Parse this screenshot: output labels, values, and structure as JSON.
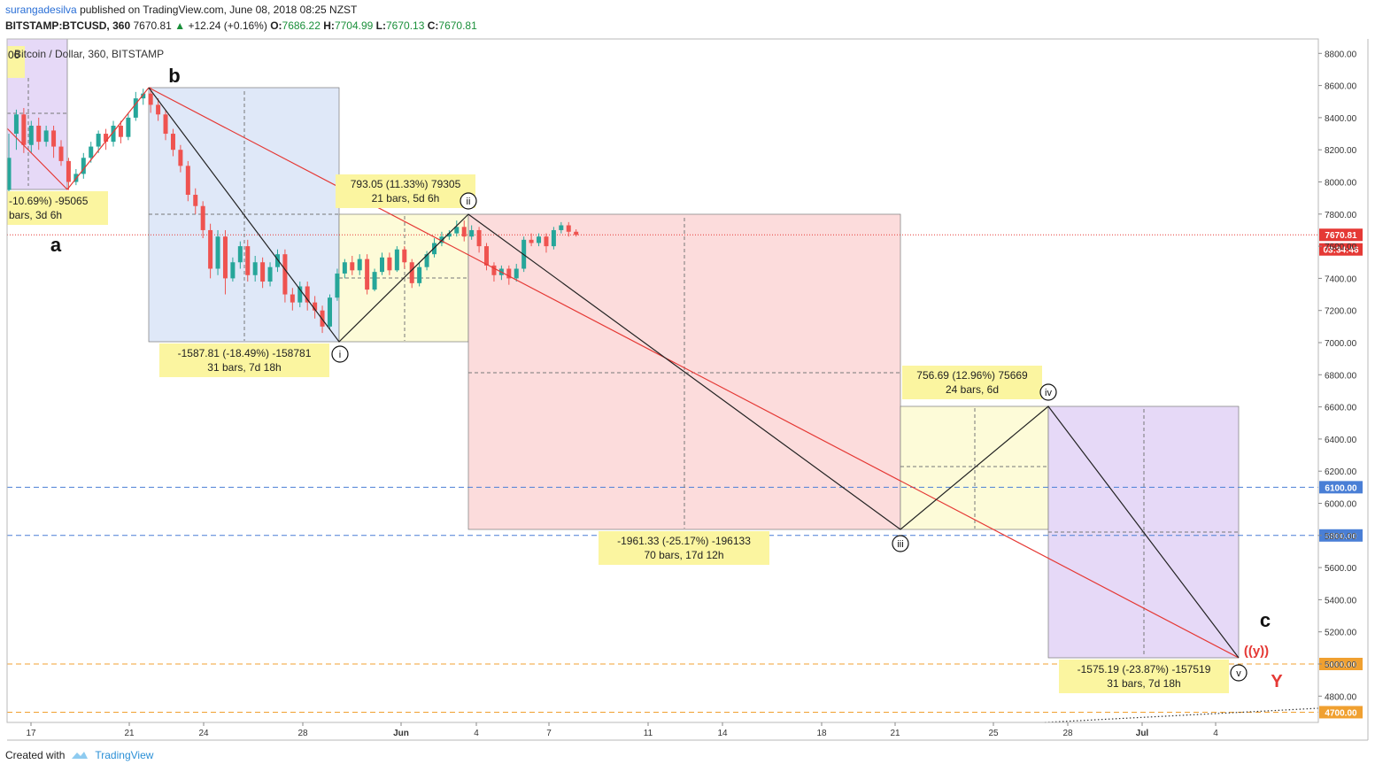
{
  "header": {
    "user": "surangadesilva",
    "published": "published on TradingView.com, June 08, 2018 08:25 NZST",
    "symbol": "BITSTAMP:BTCUSD, 360",
    "last": "7670.81",
    "change": "+12.24 (+0.16%)",
    "o_label": "O:",
    "o": "7686.22",
    "h_label": "H:",
    "h": "7704.99",
    "l_label": "L:",
    "l": "7670.13",
    "c_label": "C:",
    "c": "7670.81"
  },
  "footer": {
    "created": "Created with",
    "brand": "TradingView"
  },
  "colors": {
    "up": "#26a69a",
    "down": "#ef5350",
    "red_line": "#e53935",
    "blue_dash": "#4a7fd6",
    "orange_dash": "#f0a030"
  },
  "chart_data": {
    "type": "candlestick",
    "title": "Bitcoin / Dollar, 360, BITSTAMP",
    "ylim": [
      4620,
      8980
    ],
    "y_ticks": [
      "8800.00",
      "8600.00",
      "8400.00",
      "8200.00",
      "8000.00",
      "7800.00",
      "7600.00",
      "7400.00",
      "7200.00",
      "7000.00",
      "6800.00",
      "6600.00",
      "6400.00",
      "6200.00",
      "6000.00",
      "5800.00",
      "5600.00",
      "5400.00",
      "5200.00",
      "5000.00",
      "4800.00"
    ],
    "x_ticks": [
      "17",
      "21",
      "24",
      "28",
      "Jun",
      "4",
      "7",
      "11",
      "14",
      "18",
      "21",
      "25",
      "28",
      "Jul",
      "4"
    ],
    "price_labels": [
      {
        "label": "7670.81",
        "value": 7670.81,
        "color": "#e53935"
      },
      {
        "label": "03:34:46",
        "value": 7580,
        "color": "#e53935"
      },
      {
        "label": "6100.00",
        "value": 6100,
        "color": "#4a7fd6"
      },
      {
        "label": "5800.00",
        "value": 5800,
        "color": "#4a7fd6"
      },
      {
        "label": "5000.00",
        "value": 5000,
        "color": "#f0a030"
      },
      {
        "label": "4700.00",
        "value": 4700,
        "color": "#f0a030"
      }
    ],
    "candles": [
      [
        0,
        7950,
        8150,
        7900,
        8300
      ],
      [
        1,
        8300,
        8420,
        8200,
        8450
      ],
      [
        2,
        8420,
        8230,
        8180,
        8460
      ],
      [
        3,
        8230,
        8350,
        8180,
        8380
      ],
      [
        4,
        8350,
        8250,
        8200,
        8400
      ],
      [
        5,
        8250,
        8320,
        8220,
        8350
      ],
      [
        6,
        8320,
        8220,
        8150,
        8350
      ],
      [
        7,
        8220,
        8130,
        8100,
        8260
      ],
      [
        8,
        8130,
        8000,
        7950,
        8150
      ],
      [
        9,
        8000,
        8050,
        7980,
        8080
      ],
      [
        10,
        8050,
        8150,
        8020,
        8180
      ],
      [
        11,
        8150,
        8220,
        8120,
        8250
      ],
      [
        12,
        8220,
        8300,
        8180,
        8320
      ],
      [
        13,
        8300,
        8250,
        8200,
        8330
      ],
      [
        14,
        8250,
        8350,
        8220,
        8380
      ],
      [
        15,
        8350,
        8280,
        8240,
        8380
      ],
      [
        16,
        8280,
        8400,
        8260,
        8430
      ],
      [
        17,
        8400,
        8520,
        8380,
        8560
      ],
      [
        18,
        8520,
        8550,
        8480,
        8580
      ],
      [
        19,
        8550,
        8480,
        8430,
        8590
      ],
      [
        20,
        8480,
        8420,
        8380,
        8520
      ],
      [
        21,
        8420,
        8300,
        8260,
        8450
      ],
      [
        22,
        8300,
        8200,
        8160,
        8330
      ],
      [
        23,
        8200,
        8100,
        8060,
        8230
      ],
      [
        24,
        8100,
        7920,
        7880,
        8130
      ],
      [
        25,
        7920,
        7850,
        7800,
        7960
      ],
      [
        26,
        7850,
        7700,
        7650,
        7880
      ],
      [
        27,
        7700,
        7460,
        7400,
        7740
      ],
      [
        28,
        7460,
        7660,
        7420,
        7700
      ],
      [
        29,
        7660,
        7400,
        7300,
        7700
      ],
      [
        30,
        7400,
        7500,
        7380,
        7530
      ],
      [
        31,
        7500,
        7600,
        7460,
        7630
      ],
      [
        32,
        7600,
        7420,
        7380,
        7640
      ],
      [
        33,
        7420,
        7500,
        7380,
        7540
      ],
      [
        34,
        7500,
        7380,
        7340,
        7530
      ],
      [
        35,
        7380,
        7470,
        7350,
        7500
      ],
      [
        36,
        7470,
        7550,
        7440,
        7580
      ],
      [
        37,
        7550,
        7300,
        7250,
        7580
      ],
      [
        38,
        7300,
        7250,
        7200,
        7340
      ],
      [
        39,
        7250,
        7350,
        7220,
        7380
      ],
      [
        40,
        7350,
        7250,
        7200,
        7380
      ],
      [
        41,
        7250,
        7200,
        7150,
        7290
      ],
      [
        42,
        7200,
        7100,
        7060,
        7230
      ],
      [
        43,
        7100,
        7280,
        7080,
        7300
      ],
      [
        44,
        7280,
        7430,
        7260,
        7460
      ],
      [
        45,
        7430,
        7500,
        7400,
        7520
      ],
      [
        46,
        7500,
        7450,
        7420,
        7540
      ],
      [
        47,
        7450,
        7520,
        7420,
        7550
      ],
      [
        48,
        7520,
        7330,
        7300,
        7550
      ],
      [
        49,
        7330,
        7440,
        7320,
        7460
      ],
      [
        50,
        7440,
        7530,
        7420,
        7560
      ],
      [
        51,
        7530,
        7450,
        7420,
        7560
      ],
      [
        52,
        7450,
        7580,
        7440,
        7600
      ],
      [
        53,
        7580,
        7500,
        7460,
        7600
      ],
      [
        54,
        7500,
        7370,
        7340,
        7520
      ],
      [
        55,
        7370,
        7470,
        7350,
        7500
      ],
      [
        56,
        7470,
        7550,
        7450,
        7570
      ],
      [
        57,
        7550,
        7620,
        7530,
        7650
      ],
      [
        58,
        7620,
        7660,
        7600,
        7690
      ],
      [
        59,
        7660,
        7680,
        7640,
        7700
      ],
      [
        60,
        7680,
        7720,
        7660,
        7760
      ],
      [
        61,
        7720,
        7660,
        7630,
        7760
      ],
      [
        62,
        7660,
        7700,
        7640,
        7730
      ],
      [
        63,
        7700,
        7600,
        7560,
        7720
      ],
      [
        64,
        7600,
        7480,
        7450,
        7620
      ],
      [
        65,
        7480,
        7420,
        7380,
        7500
      ],
      [
        66,
        7420,
        7460,
        7390,
        7480
      ],
      [
        67,
        7460,
        7400,
        7360,
        7480
      ],
      [
        68,
        7400,
        7460,
        7380,
        7490
      ],
      [
        69,
        7460,
        7640,
        7440,
        7660
      ],
      [
        70,
        7640,
        7620,
        7600,
        7680
      ],
      [
        71,
        7620,
        7660,
        7600,
        7680
      ],
      [
        72,
        7660,
        7600,
        7560,
        7680
      ],
      [
        73,
        7600,
        7700,
        7580,
        7720
      ],
      [
        74,
        7700,
        7730,
        7680,
        7750
      ],
      [
        75,
        7730,
        7690,
        7660,
        7750
      ],
      [
        76,
        7690,
        7670,
        7660,
        7705
      ]
    ],
    "boxes": [
      {
        "start": 5470,
        "end": 5560,
        "fill": "#e6d9f7"
      },
      {
        "start": 5575,
        "end": 5590,
        "fill": "#dfe8f8"
      },
      {
        "start": 5540,
        "end": 5880,
        "fill": "#fdfbd8"
      },
      {
        "start": 5490,
        "end": 5890,
        "fill": "#fcdcdc"
      },
      {
        "start": 5800,
        "end": 6080,
        "fill": "#fdfbd8"
      },
      {
        "start": 5990,
        "end": 6020,
        "fill": "#e6d9f7"
      }
    ],
    "measure_labels": [
      {
        "line1": "-10.69%) -95065",
        "line2": "bars, 3d 6h"
      },
      {
        "line1": "-1587.81 (-18.49%) -158781",
        "line2": "31 bars, 7d 18h"
      },
      {
        "line1": "793.05 (11.33%) 79305",
        "line2": "21 bars, 5d 6h"
      },
      {
        "line1": "-1961.33 (-25.17%) -196133",
        "line2": "70 bars, 17d 12h"
      },
      {
        "line1": "756.69 (12.96%) 75669",
        "line2": "24 bars, 6d"
      },
      {
        "line1": "-1575.19 (-23.87%) -157519",
        "line2": "31 bars, 7d 18h"
      }
    ],
    "wave_labels": [
      {
        "text": "a",
        "type": "big"
      },
      {
        "text": "b",
        "type": "big"
      },
      {
        "text": "i",
        "type": "circle"
      },
      {
        "text": "ii",
        "type": "circle"
      },
      {
        "text": "iii",
        "type": "circle"
      },
      {
        "text": "iv",
        "type": "circle"
      },
      {
        "text": "v",
        "type": "circle"
      },
      {
        "text": "c",
        "type": "big"
      },
      {
        "text": "((y))",
        "type": "red"
      },
      {
        "text": "Y",
        "type": "red-big"
      }
    ],
    "corner_label": "06"
  }
}
